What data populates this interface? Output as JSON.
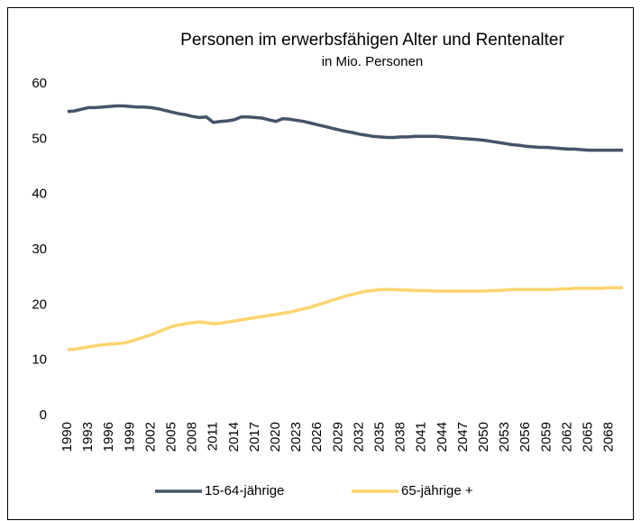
{
  "chart_data": {
    "type": "line",
    "title": "Personen im erwerbsfähigen Alter und Rentenalter",
    "subtitle": "in Mio. Personen",
    "x": [
      1990,
      1991,
      1992,
      1993,
      1994,
      1995,
      1996,
      1997,
      1998,
      1999,
      2000,
      2001,
      2002,
      2003,
      2004,
      2005,
      2006,
      2007,
      2008,
      2009,
      2010,
      2011,
      2012,
      2013,
      2014,
      2015,
      2016,
      2017,
      2018,
      2019,
      2020,
      2021,
      2022,
      2023,
      2024,
      2025,
      2026,
      2027,
      2028,
      2029,
      2030,
      2031,
      2032,
      2033,
      2034,
      2035,
      2036,
      2037,
      2038,
      2039,
      2040,
      2041,
      2042,
      2043,
      2044,
      2045,
      2046,
      2047,
      2048,
      2049,
      2050,
      2051,
      2052,
      2053,
      2054,
      2055,
      2056,
      2057,
      2058,
      2059,
      2060,
      2061,
      2062,
      2063,
      2064,
      2065,
      2066,
      2067,
      2068,
      2069,
      2070
    ],
    "series": [
      {
        "name": "15-64-jährige",
        "color": "#44546a",
        "values": [
          55.0,
          55.1,
          55.4,
          55.7,
          55.7,
          55.8,
          55.9,
          56.0,
          56.0,
          55.9,
          55.8,
          55.8,
          55.7,
          55.5,
          55.2,
          54.9,
          54.6,
          54.4,
          54.1,
          53.9,
          54.0,
          53.0,
          53.2,
          53.3,
          53.5,
          54.0,
          54.0,
          53.9,
          53.8,
          53.5,
          53.2,
          53.7,
          53.6,
          53.4,
          53.2,
          52.9,
          52.6,
          52.3,
          52.0,
          51.7,
          51.4,
          51.2,
          50.9,
          50.7,
          50.5,
          50.4,
          50.3,
          50.3,
          50.4,
          50.4,
          50.5,
          50.5,
          50.5,
          50.5,
          50.4,
          50.3,
          50.2,
          50.1,
          50.0,
          49.9,
          49.8,
          49.6,
          49.4,
          49.2,
          49.0,
          48.9,
          48.7,
          48.6,
          48.5,
          48.5,
          48.4,
          48.3,
          48.2,
          48.2,
          48.1,
          48.0,
          48.0,
          48.0,
          48.0,
          48.0,
          48.0
        ]
      },
      {
        "name": "65-jährige +",
        "color": "#fcd46f",
        "values": [
          11.9,
          12.0,
          12.2,
          12.4,
          12.6,
          12.8,
          12.9,
          13.0,
          13.1,
          13.4,
          13.8,
          14.2,
          14.6,
          15.1,
          15.6,
          16.1,
          16.4,
          16.6,
          16.8,
          16.9,
          16.8,
          16.6,
          16.7,
          16.9,
          17.1,
          17.3,
          17.5,
          17.7,
          17.9,
          18.1,
          18.3,
          18.5,
          18.7,
          19.0,
          19.3,
          19.6,
          20.0,
          20.4,
          20.8,
          21.2,
          21.6,
          21.9,
          22.2,
          22.5,
          22.6,
          22.8,
          22.8,
          22.8,
          22.7,
          22.7,
          22.6,
          22.6,
          22.6,
          22.5,
          22.5,
          22.5,
          22.5,
          22.5,
          22.5,
          22.5,
          22.5,
          22.6,
          22.6,
          22.7,
          22.8,
          22.8,
          22.8,
          22.8,
          22.8,
          22.8,
          22.8,
          22.9,
          22.9,
          23.0,
          23.0,
          23.0,
          23.0,
          23.0,
          23.1,
          23.1,
          23.1
        ]
      }
    ],
    "xlim": [
      1990,
      2070
    ],
    "xticks": [
      1990,
      1993,
      1996,
      1999,
      2002,
      2005,
      2008,
      2011,
      2014,
      2017,
      2020,
      2023,
      2026,
      2029,
      2032,
      2035,
      2038,
      2041,
      2044,
      2047,
      2050,
      2053,
      2056,
      2059,
      2062,
      2065,
      2068
    ],
    "ylim": [
      0,
      60
    ],
    "yticks": [
      0,
      10,
      20,
      30,
      40,
      50,
      60
    ],
    "grid": false,
    "legend": "bottom"
  }
}
